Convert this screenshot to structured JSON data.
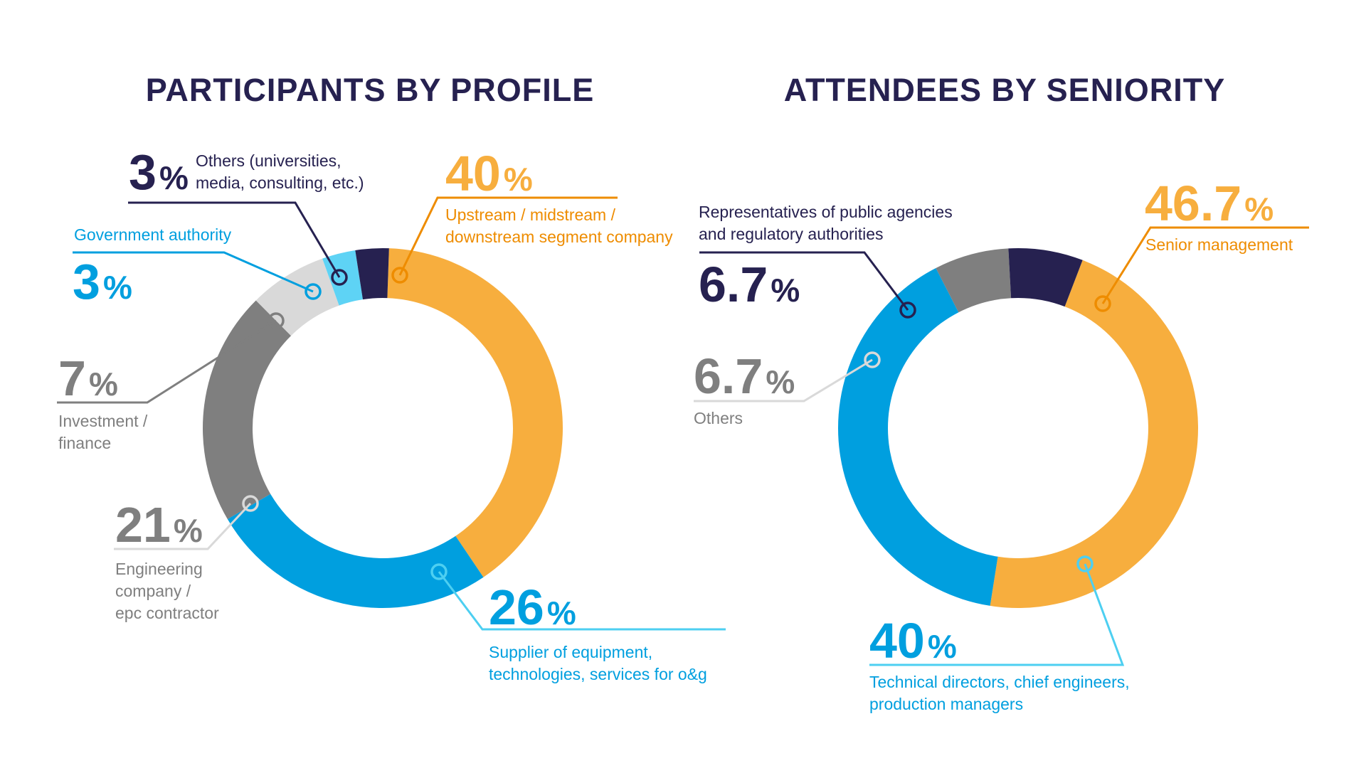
{
  "colors": {
    "navy": "#262150",
    "orange": "#F7AE3E",
    "orange_text": "#EE8C00",
    "blue": "#009FDF",
    "light_blue": "#5ED3F5",
    "gray": "#7F7F7F",
    "light_gray": "#D9D9D9",
    "leader_blue": "#4DCFF1"
  },
  "chart_data": [
    {
      "type": "pie",
      "variant": "donut",
      "title": "PARTICIPANTS BY PROFILE",
      "categories": [
        "Upstream / midstream / downstream segment company",
        "Supplier of equipment, technologies, services for o&g",
        "Engineering company / epc contractor",
        "Investment / finance",
        "Government authority",
        "Others (universities, media, consulting, etc.)"
      ],
      "values": [
        40,
        26,
        21,
        7,
        3,
        3
      ],
      "value_labels": [
        "40",
        "26",
        "21",
        "7",
        "3",
        "3"
      ],
      "unit": "%",
      "colors": [
        "#F7AE3E",
        "#009FDF",
        "#7F7F7F",
        "#D9D9D9",
        "#5ED3F5",
        "#262150"
      ],
      "label_lines": [
        [
          "Upstream / midstream /",
          "downstream segment company"
        ],
        [
          "Supplier of equipment,",
          "technologies, services for o&g"
        ],
        [
          "Engineering",
          "company /",
          "epc contractor"
        ],
        [
          "Investment /",
          "finance"
        ],
        [
          "Government authority"
        ],
        [
          "Others (universities,",
          "media, consulting, etc.)"
        ]
      ]
    },
    {
      "type": "pie",
      "variant": "donut",
      "title": "ATTENDEES BY SENIORITY",
      "categories": [
        "Senior management",
        "Technical directors, chief engineers, production managers",
        "Others",
        "Representatives of public agencies and regulatory authorities"
      ],
      "values": [
        46.7,
        40,
        6.7,
        6.7
      ],
      "value_labels": [
        "46.7",
        "40",
        "6.7",
        "6.7"
      ],
      "unit": "%",
      "colors": [
        "#F7AE3E",
        "#009FDF",
        "#7F7F7F",
        "#262150"
      ],
      "label_lines": [
        [
          "Senior management"
        ],
        [
          "Technical directors, chief engineers,",
          "production managers"
        ],
        [
          "Others"
        ],
        [
          "Representatives of public agencies",
          "and regulatory authorities"
        ]
      ]
    }
  ]
}
